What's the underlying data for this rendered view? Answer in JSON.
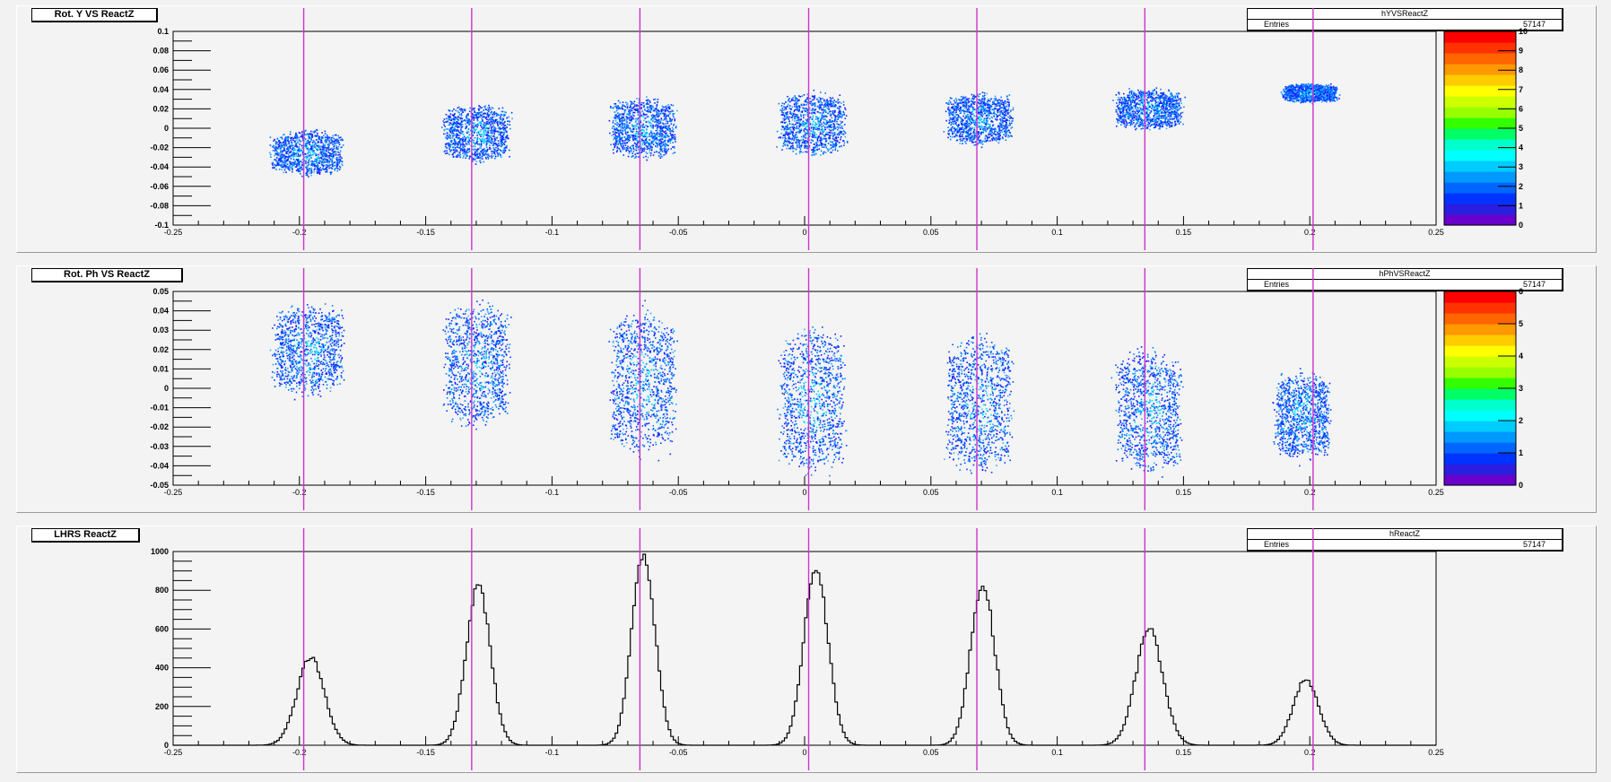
{
  "colors": {
    "marker_line": "#cc33cc",
    "histogram_line": "#000000",
    "frame": "#000000"
  },
  "pads": [
    {
      "title": "Rot. Y VS ReactZ",
      "stats_name": "hYVSReactZ",
      "stats_label": "Entries",
      "stats_value": "57147"
    },
    {
      "title": "Rot. Ph VS ReactZ",
      "stats_name": "hPhVSReactZ",
      "stats_label": "Entries",
      "stats_value": "57147"
    },
    {
      "title": "LHRS ReactZ",
      "stats_name": "hReactZ",
      "stats_label": "Entries",
      "stats_value": "57147"
    }
  ],
  "chart_data": [
    {
      "type": "heatmap",
      "title": "Rot. Y VS ReactZ",
      "histogram_name": "hYVSReactZ",
      "entries": 57147,
      "xlim": [
        -0.25,
        0.25
      ],
      "ylim": [
        -0.1,
        0.1
      ],
      "x_ticks": [
        "-0.25",
        "-0.2",
        "-0.15",
        "-0.1",
        "-0.05",
        "0",
        "0.05",
        "0.1",
        "0.15",
        "0.2",
        "0.25"
      ],
      "y_ticks": [
        "-0.1",
        "-0.08",
        "-0.06",
        "-0.04",
        "-0.02",
        "0",
        "0.02",
        "0.04",
        "0.06",
        "0.08",
        "0.1"
      ],
      "z_range": [
        0,
        10
      ],
      "z_ticks": [
        "0",
        "1",
        "2",
        "3",
        "4",
        "5",
        "6",
        "7",
        "8",
        "9",
        "10"
      ],
      "vertical_markers": [
        -0.1983,
        -0.1318,
        -0.0652,
        0.0016,
        0.0682,
        0.1347,
        0.2013
      ],
      "clusters": [
        {
          "x": -0.197,
          "y": -0.025,
          "x_halfwidth": 0.013,
          "y_halfwidth": 0.022
        },
        {
          "x": -0.13,
          "y": -0.005,
          "x_halfwidth": 0.012,
          "y_halfwidth": 0.028
        },
        {
          "x": -0.064,
          "y": 0.0,
          "x_halfwidth": 0.012,
          "y_halfwidth": 0.03
        },
        {
          "x": 0.003,
          "y": 0.005,
          "x_halfwidth": 0.012,
          "y_halfwidth": 0.03
        },
        {
          "x": 0.069,
          "y": 0.01,
          "x_halfwidth": 0.012,
          "y_halfwidth": 0.025
        },
        {
          "x": 0.136,
          "y": 0.02,
          "x_halfwidth": 0.012,
          "y_halfwidth": 0.02
        },
        {
          "x": 0.2,
          "y": 0.037,
          "x_halfwidth": 0.01,
          "y_halfwidth": 0.009
        }
      ]
    },
    {
      "type": "heatmap",
      "title": "Rot. Ph VS ReactZ",
      "histogram_name": "hPhVSReactZ",
      "entries": 57147,
      "xlim": [
        -0.25,
        0.25
      ],
      "ylim": [
        -0.05,
        0.05
      ],
      "x_ticks": [
        "-0.25",
        "-0.2",
        "-0.15",
        "-0.1",
        "-0.05",
        "0",
        "0.05",
        "0.1",
        "0.15",
        "0.2",
        "0.25"
      ],
      "y_ticks": [
        "-0.05",
        "-0.04",
        "-0.03",
        "-0.02",
        "-0.01",
        "0",
        "0.01",
        "0.02",
        "0.03",
        "0.04",
        "0.05"
      ],
      "z_range": [
        0,
        6
      ],
      "z_ticks": [
        "0",
        "1",
        "2",
        "3",
        "4",
        "5",
        "6"
      ],
      "vertical_markers": [
        -0.1983,
        -0.1318,
        -0.0652,
        0.0016,
        0.0682,
        0.1347,
        0.2013
      ],
      "clusters": [
        {
          "x": -0.197,
          "y": 0.02,
          "x_halfwidth": 0.013,
          "y_halfwidth": 0.022
        },
        {
          "x": -0.13,
          "y": 0.013,
          "x_halfwidth": 0.012,
          "y_halfwidth": 0.03
        },
        {
          "x": -0.064,
          "y": 0.003,
          "x_halfwidth": 0.012,
          "y_halfwidth": 0.035
        },
        {
          "x": 0.003,
          "y": -0.006,
          "x_halfwidth": 0.012,
          "y_halfwidth": 0.036
        },
        {
          "x": 0.069,
          "y": -0.008,
          "x_halfwidth": 0.012,
          "y_halfwidth": 0.034
        },
        {
          "x": 0.136,
          "y": -0.012,
          "x_halfwidth": 0.012,
          "y_halfwidth": 0.03
        },
        {
          "x": 0.197,
          "y": -0.014,
          "x_halfwidth": 0.01,
          "y_halfwidth": 0.022
        }
      ]
    },
    {
      "type": "bar",
      "subtype": "step-histogram",
      "title": "LHRS ReactZ",
      "histogram_name": "hReactZ",
      "entries": 57147,
      "xlim": [
        -0.25,
        0.25
      ],
      "ylim": [
        0,
        1000
      ],
      "x_ticks": [
        "-0.25",
        "-0.2",
        "-0.15",
        "-0.1",
        "-0.05",
        "0",
        "0.05",
        "0.1",
        "0.15",
        "0.2",
        "0.25"
      ],
      "y_ticks": [
        "0",
        "200",
        "400",
        "600",
        "800",
        "1000"
      ],
      "vertical_markers": [
        -0.1983,
        -0.1318,
        -0.0652,
        0.0016,
        0.0682,
        0.1347,
        0.2013
      ],
      "peaks": [
        {
          "x": -0.1955,
          "height": 450,
          "width": 0.0125
        },
        {
          "x": -0.1292,
          "height": 820,
          "width": 0.011
        },
        {
          "x": -0.0638,
          "height": 990,
          "width": 0.0105
        },
        {
          "x": 0.0045,
          "height": 910,
          "width": 0.011
        },
        {
          "x": 0.0705,
          "height": 830,
          "width": 0.011
        },
        {
          "x": 0.1365,
          "height": 590,
          "width": 0.0125
        },
        {
          "x": 0.1985,
          "height": 340,
          "width": 0.0115
        }
      ]
    }
  ]
}
